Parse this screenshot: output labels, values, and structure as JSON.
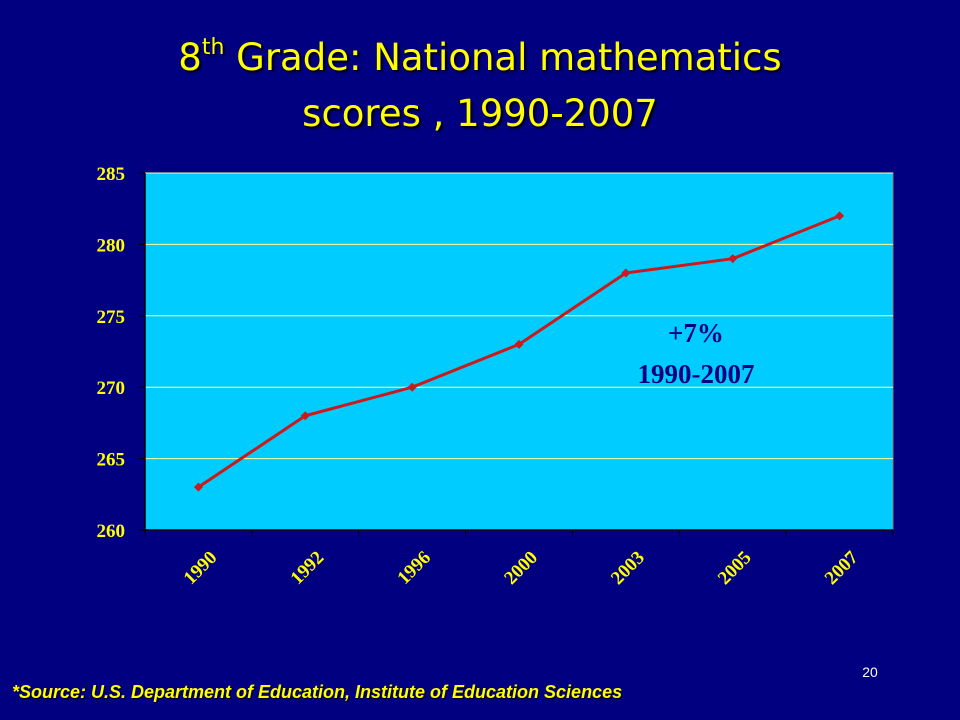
{
  "slide": {
    "title_prefix": "8",
    "title_superscript": "th",
    "title_main": " Grade:  National mathematics",
    "title_line2": "scores , 1990-2007",
    "source": "*Source: U.S. Department of Education, Institute of Education Sciences",
    "slide_number": "20"
  },
  "colors": {
    "background": "#000080",
    "title": "#ffff00",
    "plot_area": "#00ccff",
    "gridline": "#ffff99",
    "series_line": "#cc1a1a",
    "tick_labels": "#ffff00",
    "annotation": "#000080"
  },
  "chart_data": {
    "type": "line",
    "title": "",
    "xlabel": "",
    "ylabel": "",
    "categories": [
      "1990",
      "1992",
      "1996",
      "2000",
      "2003",
      "2005",
      "2007"
    ],
    "series": [
      {
        "values": [
          263,
          268,
          270,
          273,
          278,
          279,
          282
        ]
      }
    ],
    "ylim": [
      260,
      285
    ],
    "yticks": [
      260,
      265,
      270,
      275,
      280,
      285
    ],
    "grid": true,
    "legend": "none",
    "annotation": {
      "line1": "+7%",
      "line2": "1990-2007"
    }
  }
}
